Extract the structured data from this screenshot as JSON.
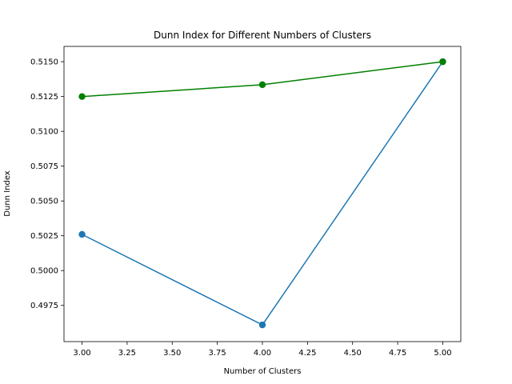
{
  "chart_data": {
    "type": "line",
    "title": "Dunn Index for Different Numbers of Clusters",
    "xlabel": "Number of Clusters",
    "ylabel": "Dunn Index",
    "xlim": [
      2.9,
      5.1
    ],
    "ylim": [
      0.4949,
      0.5161
    ],
    "xticks": [
      3.0,
      3.25,
      3.5,
      3.75,
      4.0,
      4.25,
      4.5,
      4.75,
      5.0
    ],
    "xtick_labels": [
      "3.00",
      "3.25",
      "3.50",
      "3.75",
      "4.00",
      "4.25",
      "4.50",
      "4.75",
      "5.00"
    ],
    "yticks": [
      0.4975,
      0.5,
      0.5025,
      0.505,
      0.5075,
      0.51,
      0.5125,
      0.515
    ],
    "ytick_labels": [
      "0.4975",
      "0.5000",
      "0.5025",
      "0.5050",
      "0.5075",
      "0.5100",
      "0.5125",
      "0.5150"
    ],
    "grid": false,
    "legend": false,
    "series": [
      {
        "x": [
          3,
          4,
          5
        ],
        "y": [
          0.5026,
          0.4961,
          0.515
        ],
        "color": "#1f77b4",
        "marker": "circle"
      },
      {
        "x": [
          3,
          4,
          5
        ],
        "y": [
          0.5125,
          0.51335,
          0.515
        ],
        "color": "#008000",
        "marker": "circle"
      }
    ]
  }
}
